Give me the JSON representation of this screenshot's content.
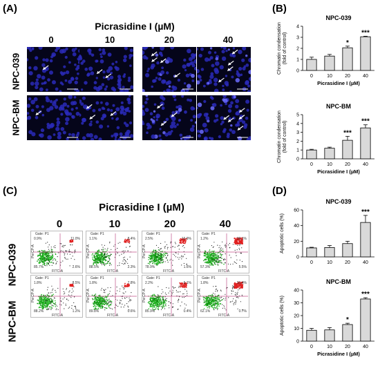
{
  "panels": {
    "A": "(A)",
    "B": "(B)",
    "C": "(C)",
    "D": "(D)"
  },
  "panel_a": {
    "title": "Picrasidine I (µM)",
    "concentrations": [
      "0",
      "10",
      "20",
      "40"
    ],
    "rows": [
      "NPC-039",
      "NPC-BM"
    ],
    "arrow_counts": [
      [
        1,
        2,
        4,
        4
      ],
      [
        1,
        3,
        3,
        5
      ]
    ]
  },
  "panel_c": {
    "title": "Picrasidine I (µM)",
    "concentrations": [
      "0",
      "10",
      "20",
      "40"
    ],
    "rows": [
      "NPC-039",
      "NPC-BM"
    ],
    "gate_label": "Gate: P1",
    "x_axis": "FITC-A",
    "y_axis": "PerCP-A",
    "quadrants": [
      [
        {
          "ul": "0.9%",
          "ur": "11.0%",
          "ll": "85.7%",
          "lr": "2.6%"
        },
        {
          "ul": "1.1%",
          "ur": "8.4%",
          "ll": "88.5%",
          "lr": "2.3%"
        },
        {
          "ul": "2.5%",
          "ur": "16.9%",
          "ll": "78.9%",
          "lr": "1.6%"
        },
        {
          "ul": "1.2%",
          "ur": "36.1%",
          "ll": "57.3%",
          "lr": "5.5%"
        }
      ],
      [
        {
          "ul": "1.8%",
          "ur": "8.5%",
          "ll": "88.2%",
          "lr": "1.2%"
        },
        {
          "ul": "1.8%",
          "ur": "7.8%",
          "ll": "89.8%",
          "lr": "0.6%"
        },
        {
          "ul": "2.2%",
          "ur": "6.1%",
          "ll": "85.9%",
          "lr": "0.4%"
        },
        {
          "ul": "1.8%",
          "ur": "31.4%",
          "ll": "62.1%",
          "lr": "0.7%"
        }
      ]
    ]
  },
  "chart_data": [
    {
      "type": "bar",
      "title": "NPC-039",
      "xlabel": "Picrasidine I (µM)",
      "ylabel": "Chromatin condensation (fold of control)",
      "categories": [
        "0",
        "10",
        "20",
        "40"
      ],
      "values": [
        1.0,
        1.3,
        2.05,
        3.05
      ],
      "errors": [
        0.2,
        0.15,
        0.15,
        0.05
      ],
      "significance": [
        "",
        "",
        "*",
        "***"
      ],
      "ylim": [
        0,
        4
      ],
      "yticks": [
        "0",
        "1",
        "2",
        "3",
        "4"
      ]
    },
    {
      "type": "bar",
      "title": "NPC-BM",
      "xlabel": "Picrasidine I (µM)",
      "ylabel": "Chromatin condensation (fold of control)",
      "categories": [
        "0",
        "10",
        "20",
        "40"
      ],
      "values": [
        1.0,
        1.2,
        2.1,
        3.5
      ],
      "errors": [
        0.08,
        0.12,
        0.45,
        0.35
      ],
      "significance": [
        "",
        "",
        "***",
        "***"
      ],
      "ylim": [
        0,
        5
      ],
      "yticks": [
        "0",
        "1",
        "2",
        "3",
        "4",
        "5"
      ]
    },
    {
      "type": "bar",
      "title": "NPC-039",
      "xlabel": "",
      "ylabel": "Apoptotic cells (%)",
      "categories": [
        "0",
        "10",
        "20",
        "40"
      ],
      "values": [
        11.5,
        12,
        17,
        44
      ],
      "errors": [
        0.8,
        2.5,
        3,
        9
      ],
      "significance": [
        "",
        "",
        "",
        "***"
      ],
      "ylim": [
        0,
        60
      ],
      "yticks": [
        "0",
        "20",
        "40",
        "60"
      ]
    },
    {
      "type": "bar",
      "title": "NPC-BM",
      "xlabel": "Picrasidine I (µM)",
      "ylabel": "Apoptotic cells (%)",
      "categories": [
        "0",
        "10",
        "20",
        "40"
      ],
      "values": [
        8.5,
        8.8,
        13,
        33
      ],
      "errors": [
        1.5,
        1.8,
        1,
        1
      ],
      "significance": [
        "",
        "",
        "*",
        "***"
      ],
      "ylim": [
        0,
        40
      ],
      "yticks": [
        "0",
        "10",
        "20",
        "30",
        "40"
      ]
    }
  ]
}
